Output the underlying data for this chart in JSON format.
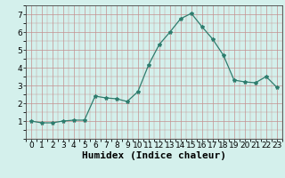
{
  "x": [
    0,
    1,
    2,
    3,
    4,
    5,
    6,
    7,
    8,
    9,
    10,
    11,
    12,
    13,
    14,
    15,
    16,
    17,
    18,
    19,
    20,
    21,
    22,
    23
  ],
  "y": [
    1.0,
    0.9,
    0.9,
    1.0,
    1.05,
    1.05,
    2.4,
    2.3,
    2.25,
    2.1,
    2.65,
    4.15,
    5.3,
    6.0,
    6.75,
    7.05,
    6.3,
    5.6,
    4.7,
    3.3,
    3.2,
    3.15,
    3.5,
    2.9
  ],
  "xlabel": "Humidex (Indice chaleur)",
  "ylim": [
    0,
    7.5
  ],
  "xlim": [
    -0.5,
    23.5
  ],
  "yticks": [
    1,
    2,
    3,
    4,
    5,
    6,
    7
  ],
  "xticks": [
    0,
    1,
    2,
    3,
    4,
    5,
    6,
    7,
    8,
    9,
    10,
    11,
    12,
    13,
    14,
    15,
    16,
    17,
    18,
    19,
    20,
    21,
    22,
    23
  ],
  "line_color": "#2e7d6e",
  "marker": "*",
  "marker_size": 3,
  "bg_color": "#d4f0ec",
  "grid_color": "#c49090",
  "xlabel_fontsize": 8,
  "tick_fontsize": 6.5
}
